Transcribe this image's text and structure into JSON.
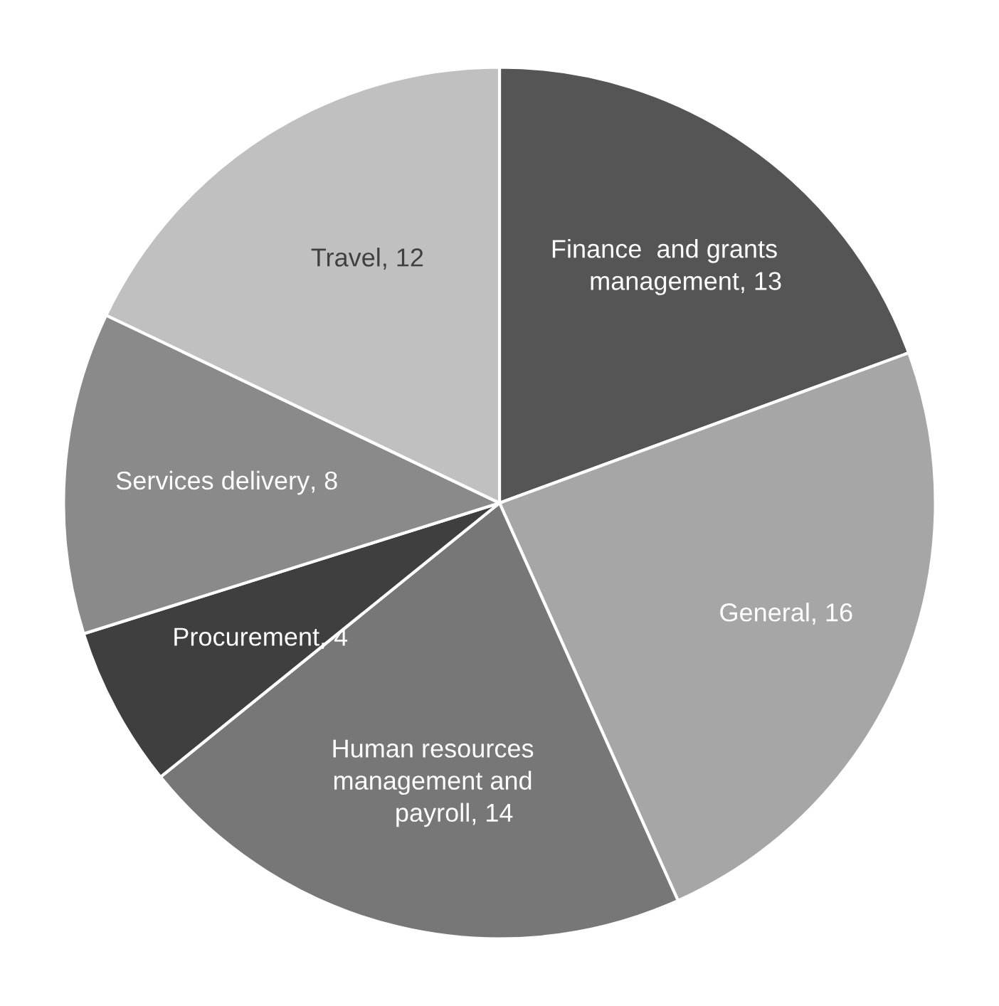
{
  "chart_data": {
    "type": "pie",
    "categories": [
      "Finance  and grants\nmanagement",
      "General",
      "Human resources\nmanagement and\npayroll",
      "Procurement",
      "Services delivery",
      "Travel"
    ],
    "values": [
      13,
      16,
      14,
      4,
      8,
      12
    ],
    "colors": [
      "#555555",
      "#a6a6a6",
      "#777777",
      "#3f3f3f",
      "#8a8a8a",
      "#c0c0c0"
    ],
    "value_labels": [
      ", 13",
      ", 16",
      ", 14",
      ", 4",
      ", 8",
      ", 12"
    ],
    "legend": false
  }
}
